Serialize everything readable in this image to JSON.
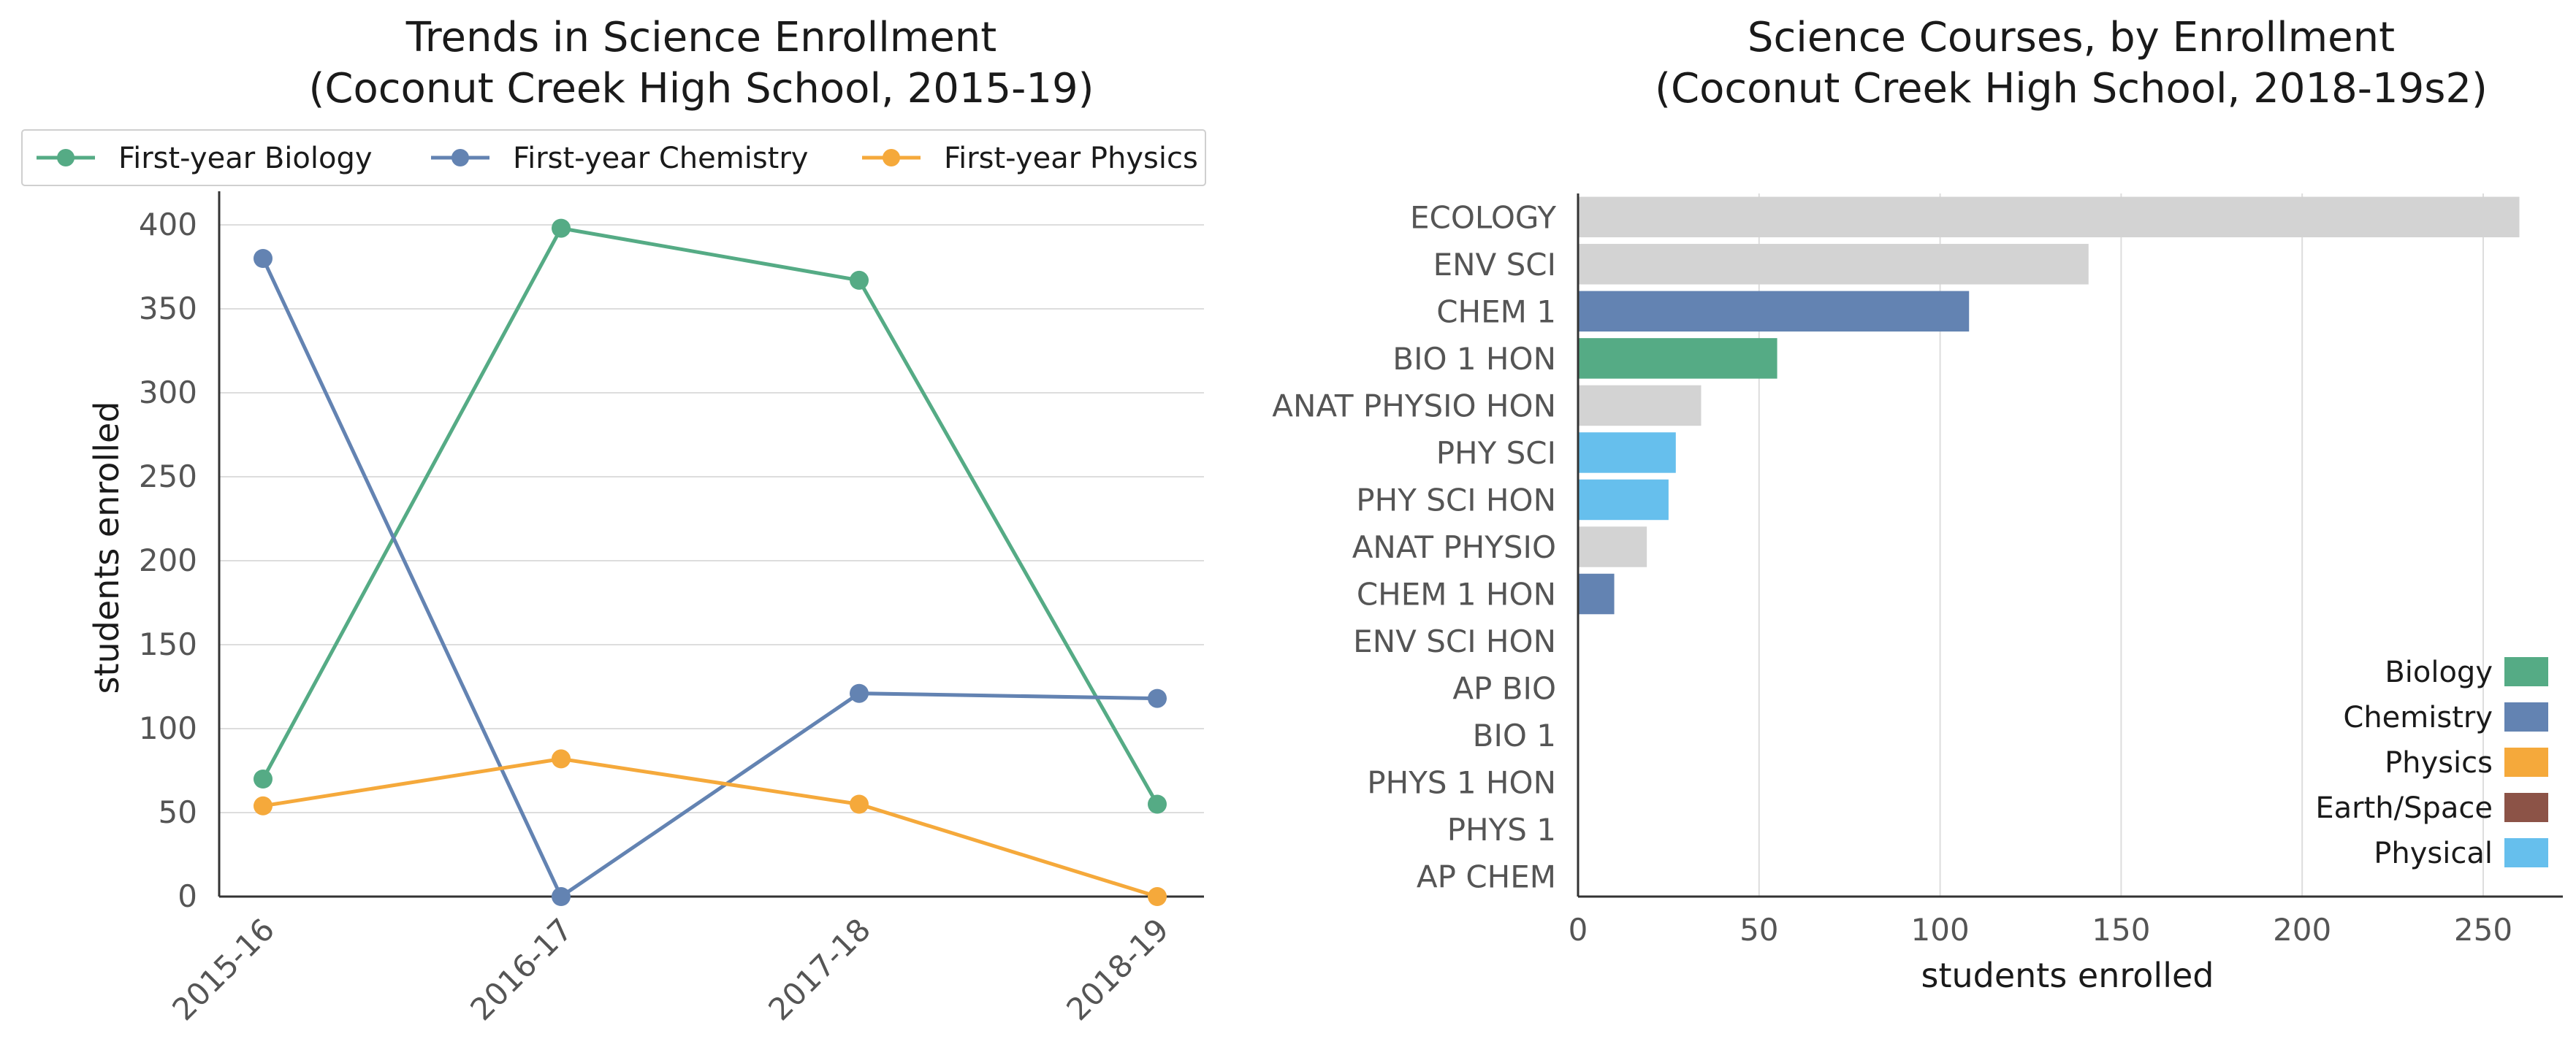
{
  "chart_data": [
    {
      "type": "line",
      "title": "Trends in Science Enrollment",
      "subtitle": "(Coconut Creek High School, 2015-19)",
      "xlabel": "",
      "ylabel": "students enrolled",
      "x": [
        "2015-16",
        "2016-17",
        "2017-18",
        "2018-19"
      ],
      "ylim": [
        0,
        420
      ],
      "yticks": [
        0,
        50,
        100,
        150,
        200,
        250,
        300,
        350,
        400
      ],
      "grid": "horizontal",
      "legend": "top",
      "series": [
        {
          "name": "First-year Biology",
          "color": "#55ab85",
          "values": [
            70,
            398,
            367,
            55
          ]
        },
        {
          "name": "First-year Chemistry",
          "color": "#6383b2",
          "values": [
            380,
            0,
            121,
            118
          ]
        },
        {
          "name": "First-year Physics",
          "color": "#f5a93b",
          "values": [
            54,
            82,
            55,
            0
          ]
        }
      ]
    },
    {
      "type": "bar",
      "orientation": "horizontal",
      "title": "Science Courses, by Enrollment",
      "subtitle": "(Coconut Creek High School, 2018-19s2)",
      "xlabel": "students enrolled",
      "ylabel": "",
      "xlim": [
        0,
        272
      ],
      "xticks": [
        0,
        50,
        100,
        150,
        200,
        250
      ],
      "grid": "vertical",
      "legend": "bottom-right",
      "categories": [
        "ECOLOGY",
        "ENV SCI",
        "CHEM 1",
        "BIO 1 HON",
        "ANAT PHYSIO HON",
        "PHY SCI",
        "PHY SCI HON",
        "ANAT PHYSIO",
        "CHEM 1 HON",
        "ENV SCI HON",
        "AP BIO",
        "BIO 1",
        "PHYS 1 HON",
        "PHYS 1",
        "AP CHEM"
      ],
      "values": [
        260,
        141,
        108,
        55,
        34,
        27,
        25,
        19,
        10,
        0,
        0,
        0,
        0,
        0,
        0
      ],
      "groups": [
        "Other",
        "Other",
        "Chemistry",
        "Biology",
        "Other",
        "Physical",
        "Physical",
        "Other",
        "Chemistry",
        "Other",
        "Biology",
        "Biology",
        "Physics",
        "Physics",
        "Chemistry"
      ],
      "group_colors": {
        "Biology": "#55ab85",
        "Chemistry": "#6383b2",
        "Physics": "#f5a93b",
        "Earth/Space": "#8c5347",
        "Physical": "#66bfed",
        "Other": "#d3d3d3"
      },
      "legend_entries": [
        "Biology",
        "Chemistry",
        "Physics",
        "Earth/Space",
        "Physical"
      ]
    }
  ]
}
